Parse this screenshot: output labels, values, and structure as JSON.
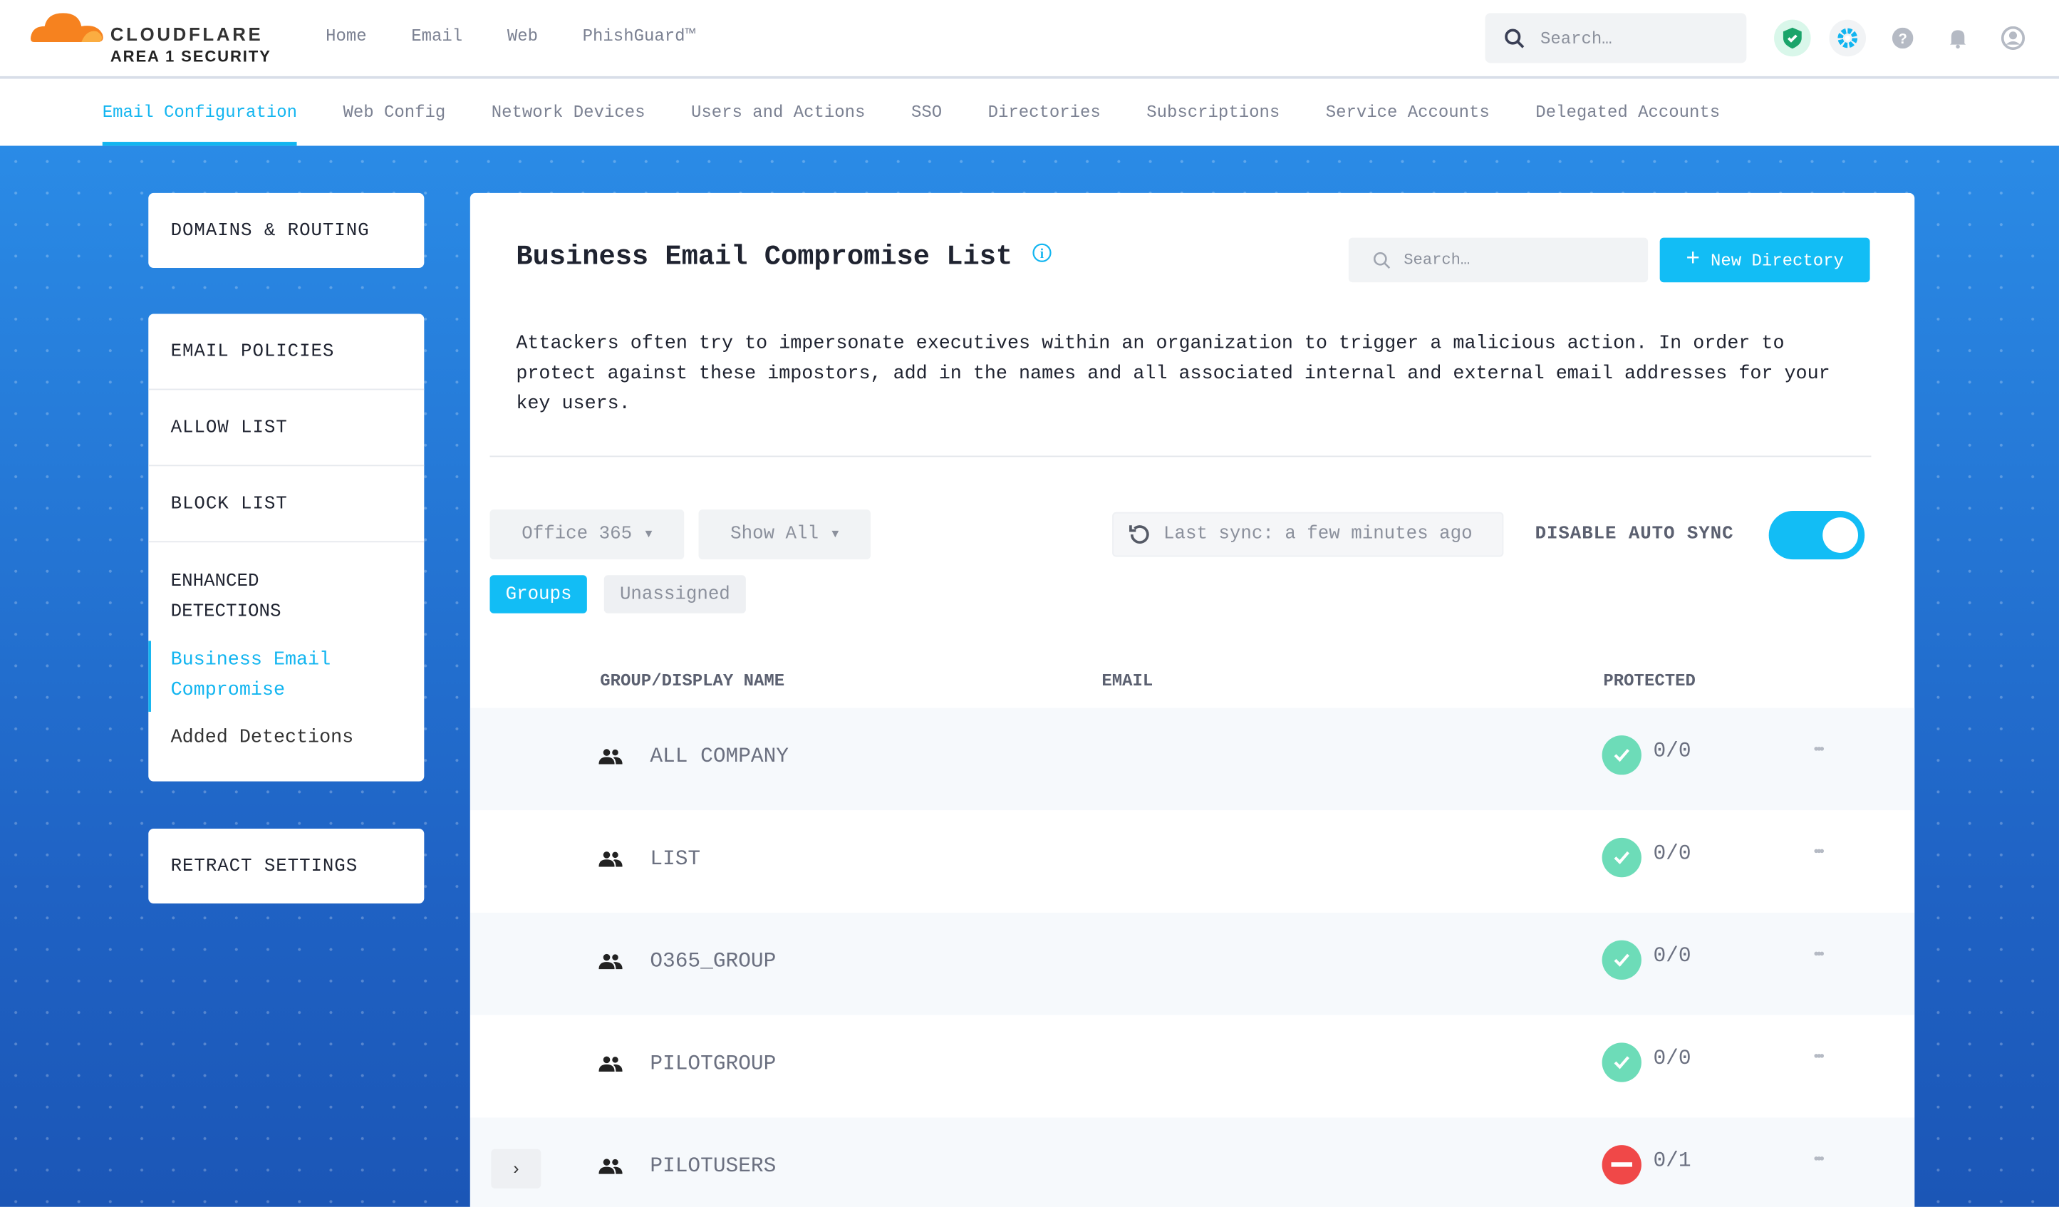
{
  "brand": {
    "name": "CLOUDFLARE",
    "sub": "AREA 1 SECURITY",
    "orange": "#f6821f"
  },
  "topnav": [
    "Home",
    "Email",
    "Web",
    "PhishGuard™"
  ],
  "global_search": {
    "placeholder": "Search…"
  },
  "top_icons": [
    "shield-check-icon",
    "gear-icon",
    "help-icon",
    "bell-icon",
    "user-icon"
  ],
  "subnav": {
    "items": [
      "Email Configuration",
      "Web Config",
      "Network Devices",
      "Users and Actions",
      "SSO",
      "Directories",
      "Subscriptions",
      "Service Accounts",
      "Delegated Accounts"
    ],
    "active": 0
  },
  "sidebar": {
    "domains": "DOMAINS & ROUTING",
    "items": [
      "EMAIL POLICIES",
      "ALLOW LIST",
      "BLOCK LIST"
    ],
    "enhanced": "ENHANCED DETECTIONS",
    "sub": [
      "Business Email Compromise",
      "Added Detections"
    ],
    "retract": "RETRACT SETTINGS"
  },
  "main": {
    "title": "Business Email Compromise List",
    "search_placeholder": "Search…",
    "new_button": "New Directory",
    "description": "Attackers often try to impersonate executives within an organization to trigger a malicious action. In order to protect against these impostors, add in the names and all associated internal and external email addresses for your key users.",
    "source_dropdown": "Office 365",
    "filter_dropdown": "Show All",
    "last_sync": "Last sync: a few minutes ago",
    "auto_sync_label": "DISABLE AUTO SYNC",
    "auto_sync_on": true,
    "tabs": [
      "Groups",
      "Unassigned"
    ],
    "active_tab": 0,
    "columns": [
      "GROUP/DISPLAY NAME",
      "EMAIL",
      "PROTECTED"
    ],
    "rows": [
      {
        "name": "ALL COMPANY",
        "protected": "0/0",
        "status": "ok"
      },
      {
        "name": "LIST",
        "protected": "0/0",
        "status": "ok"
      },
      {
        "name": "O365_GROUP",
        "protected": "0/0",
        "status": "ok"
      },
      {
        "name": "PILOTGROUP",
        "protected": "0/0",
        "status": "ok"
      },
      {
        "name": "PILOTUSERS",
        "protected": "0/1",
        "status": "blocked",
        "expandable": true
      }
    ]
  },
  "colors": {
    "accent": "#12bdf5",
    "ok": "#6ddcb8",
    "blocked": "#f04848"
  }
}
